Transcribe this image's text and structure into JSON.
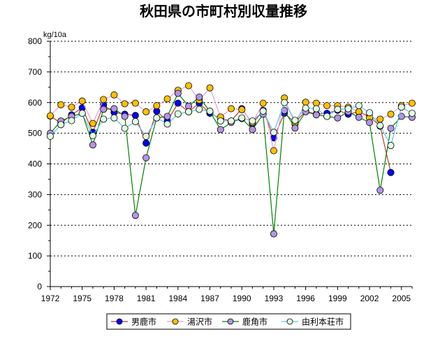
{
  "chart_data": {
    "type": "line",
    "title": "秋田県の市町村別収量推移",
    "ylabel": "kg/10a",
    "xlabel": "",
    "ylim": [
      0,
      800
    ],
    "y_ticks": [
      "0",
      "100",
      "200",
      "300",
      "400",
      "500",
      "600",
      "700",
      "800"
    ],
    "x": [
      1972,
      1973,
      1974,
      1975,
      1976,
      1977,
      1978,
      1979,
      1980,
      1981,
      1982,
      1983,
      1984,
      1985,
      1986,
      1987,
      1988,
      1989,
      1990,
      1991,
      1992,
      1993,
      1994,
      1995,
      1996,
      1997,
      1998,
      1999,
      2000,
      2001,
      2002,
      2003,
      2004,
      2005,
      2006
    ],
    "x_tick_labels": [
      "1972",
      "1975",
      "1978",
      "1981",
      "1984",
      "1987",
      "1990",
      "1993",
      "1996",
      "1999",
      "2002",
      "2005"
    ],
    "grid": true,
    "legend_position": "bottom",
    "series": [
      {
        "name": "男鹿市",
        "color": "#c0392b",
        "marker_fill": "#0000ff",
        "marker": "circle",
        "values": [
          556,
          533,
          560,
          583,
          503,
          592,
          568,
          562,
          558,
          468,
          572,
          540,
          598,
          570,
          598,
          565,
          548,
          540,
          580,
          531,
          575,
          485,
          565,
          535,
          572,
          562,
          565,
          575,
          562,
          570,
          555,
          523,
          372,
          null,
          null
        ]
      },
      {
        "name": "湯沢市",
        "color": "#e8a0d8",
        "marker_fill": "#ffc000",
        "marker": "circle",
        "values": [
          557,
          593,
          585,
          605,
          532,
          610,
          625,
          596,
          598,
          570,
          590,
          612,
          640,
          655,
          608,
          648,
          553,
          580,
          577,
          535,
          598,
          443,
          615,
          530,
          601,
          598,
          590,
          590,
          585,
          570,
          550,
          546,
          562,
          590,
          598
        ]
      },
      {
        "name": "鹿角市",
        "color": "#008000",
        "marker_fill": "#b494e4",
        "marker": "circle",
        "values": [
          500,
          540,
          555,
          565,
          462,
          578,
          580,
          555,
          232,
          420,
          550,
          555,
          630,
          588,
          618,
          571,
          512,
          535,
          548,
          512,
          562,
          172,
          574,
          517,
          570,
          560,
          555,
          550,
          570,
          552,
          535,
          314,
          516,
          555,
          552
        ]
      },
      {
        "name": "由利本荘市",
        "color": "#5bc0eb",
        "marker_fill": "#e0ffe0",
        "marker": "circle",
        "values": [
          490,
          528,
          541,
          565,
          492,
          546,
          550,
          516,
          538,
          490,
          550,
          530,
          563,
          570,
          578,
          572,
          540,
          540,
          550,
          540,
          572,
          503,
          600,
          542,
          582,
          580,
          555,
          578,
          580,
          590,
          567,
          525,
          460,
          585,
          565
        ]
      }
    ]
  }
}
